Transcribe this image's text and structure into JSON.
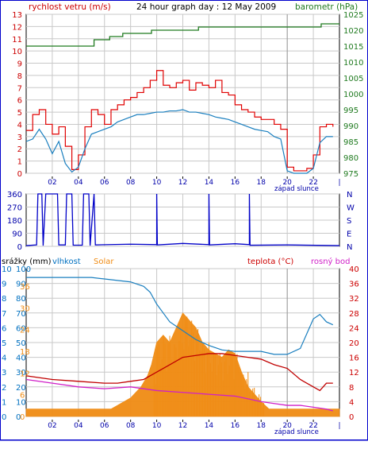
{
  "header": {
    "title": "24 hour graph day : 12 May 2009",
    "left_label": "rychlost vetru (m/s)",
    "right_label": "barometr (hPa)"
  },
  "labels": {
    "sunset_1": "západ slunce",
    "sunset_3": "západ slunce",
    "srazky": "srážky (mm)",
    "vlhkost": "vlhkost",
    "solar": "Solar",
    "teplota": "teplota (°C)",
    "rosny": "rosný bod"
  },
  "colors": {
    "frame": "#0000cc",
    "grid": "#c8c8c8",
    "wind_gust": "#e00000",
    "wind_avg": "#1a7fbf",
    "baro": "#1f7a1f",
    "dir": "#0000c8",
    "humidity": "#1a7fbf",
    "solar": "#f08c14",
    "temp": "#c00000",
    "dew": "#d020c8",
    "left_axis_1": "#cc0000",
    "right_axis_1": "#1f7a1f",
    "left_axis_3": "#0070c0",
    "right_axis_3": "#cc0000"
  },
  "chart_data": [
    {
      "type": "line",
      "title": "24 hour graph day : 12 May 2009",
      "x_ticks": [
        "02",
        "04",
        "06",
        "08",
        "10",
        "12",
        "14",
        "16",
        "18",
        "20",
        "22"
      ],
      "y_left": {
        "label": "rychlost vetru (m/s)",
        "range": [
          0,
          13
        ],
        "ticks": [
          0,
          1,
          2,
          3,
          4,
          5,
          6,
          7,
          8,
          9,
          10,
          11,
          12,
          13
        ]
      },
      "y_right": {
        "label": "barometr (hPa)",
        "range": [
          975,
          1025
        ],
        "ticks": [
          975,
          980,
          985,
          990,
          995,
          1000,
          1005,
          1010,
          1015,
          1020,
          1025
        ]
      },
      "series": [
        {
          "name": "gust",
          "x": [
            0,
            0.5,
            1,
            1.5,
            2,
            2.5,
            3,
            3.5,
            4,
            4.5,
            5,
            5.5,
            6,
            6.5,
            7,
            7.5,
            8,
            8.5,
            9,
            9.5,
            10,
            10.5,
            11,
            11.5,
            12,
            12.5,
            13,
            13.5,
            14,
            14.5,
            15,
            15.5,
            16,
            16.5,
            17,
            17.5,
            18,
            18.5,
            19,
            19.5,
            20,
            20.5,
            21,
            21.5,
            22,
            22.5,
            23,
            23.5
          ],
          "values": [
            3.5,
            4.8,
            5.2,
            4.0,
            3.2,
            3.8,
            2.2,
            0.3,
            1.5,
            3.8,
            5.2,
            4.8,
            4.0,
            5.2,
            5.6,
            6.0,
            6.2,
            6.6,
            7.0,
            7.6,
            8.4,
            7.2,
            7.0,
            7.4,
            7.6,
            6.8,
            7.4,
            7.2,
            7.0,
            7.6,
            6.6,
            6.4,
            5.6,
            5.2,
            5.0,
            4.6,
            4.4,
            4.4,
            4.0,
            3.6,
            0.5,
            0.2,
            0.2,
            0.4,
            1.5,
            3.8,
            4.0,
            3.8
          ]
        },
        {
          "name": "average",
          "x": [
            0,
            0.5,
            1,
            1.5,
            2,
            2.5,
            3,
            3.5,
            4,
            4.5,
            5,
            5.5,
            6,
            6.5,
            7,
            7.5,
            8,
            8.5,
            9,
            9.5,
            10,
            10.5,
            11,
            11.5,
            12,
            12.5,
            13,
            13.5,
            14,
            14.5,
            15,
            15.5,
            16,
            16.5,
            17,
            17.5,
            18,
            18.5,
            19,
            19.5,
            20,
            20.5,
            21,
            21.5,
            22,
            22.5,
            23,
            23.5
          ],
          "values": [
            2.6,
            2.8,
            3.6,
            2.8,
            1.6,
            2.6,
            0.8,
            0.1,
            0.5,
            2.0,
            3.2,
            3.4,
            3.6,
            3.8,
            4.2,
            4.4,
            4.6,
            4.8,
            4.8,
            4.9,
            5.0,
            5.0,
            5.1,
            5.1,
            5.2,
            5.0,
            5.0,
            4.9,
            4.8,
            4.6,
            4.5,
            4.4,
            4.2,
            4.0,
            3.8,
            3.6,
            3.5,
            3.4,
            3.0,
            2.8,
            0.2,
            0.0,
            0.0,
            0.0,
            0.4,
            2.5,
            3.0,
            3.0
          ]
        },
        {
          "name": "barometer",
          "x": [
            0,
            5.2,
            5.2,
            6.4,
            6.4,
            7.4,
            7.4,
            9.6,
            9.6,
            13.2,
            13.2,
            22.6,
            22.6,
            24
          ],
          "values": [
            1015,
            1015,
            1017,
            1017,
            1018,
            1018,
            1019,
            1019,
            1020,
            1020,
            1021,
            1021,
            1022,
            1022
          ]
        }
      ],
      "x_range": [
        0,
        24
      ],
      "annotation": "západ slunce"
    },
    {
      "type": "line",
      "y_left": {
        "range": [
          0,
          360
        ],
        "ticks": [
          0,
          90,
          180,
          270,
          360
        ]
      },
      "y_right": {
        "ticks": [
          "N",
          "W",
          "S",
          "E",
          "N"
        ]
      },
      "x_ticks": [
        "02",
        "04",
        "06",
        "08",
        "10",
        "12",
        "14",
        "16",
        "18",
        "20",
        "22"
      ],
      "series": [
        {
          "name": "wind direction",
          "x": [
            0,
            0.8,
            0.9,
            1.2,
            1.3,
            1.5,
            1.7,
            2.4,
            2.5,
            3.0,
            3.1,
            3.5,
            3.6,
            4.3,
            4.4,
            4.8,
            4.9,
            5.2,
            5.3,
            8,
            10.0,
            10.0,
            10.05,
            12,
            14.0,
            14.0,
            14.05,
            16,
            17.1,
            17.1,
            17.15,
            20,
            24
          ],
          "values": [
            5,
            10,
            360,
            360,
            5,
            360,
            360,
            360,
            10,
            10,
            360,
            360,
            8,
            8,
            360,
            360,
            5,
            360,
            10,
            15,
            12,
            360,
            10,
            20,
            12,
            360,
            10,
            18,
            12,
            360,
            8,
            10,
            5
          ]
        }
      ],
      "x_range": [
        0,
        24
      ]
    },
    {
      "type": "area",
      "x_ticks": [
        "02",
        "04",
        "06",
        "08",
        "10",
        "12",
        "14",
        "16",
        "18",
        "20",
        "22"
      ],
      "y_left_outer": {
        "label": "srážky (mm)",
        "ticks": [
          0,
          1,
          2,
          3,
          4,
          5,
          6,
          7,
          8,
          9,
          10
        ]
      },
      "y_left_inner": {
        "label": "vlhkost",
        "ticks": [
          0,
          10,
          20,
          30,
          40,
          50,
          60,
          70,
          80,
          90,
          100
        ]
      },
      "y_solar": {
        "label": "Solar",
        "ticks": [
          0,
          6,
          12,
          18,
          24,
          30,
          36
        ]
      },
      "y_right": {
        "label": "teplota (°C)",
        "ticks": [
          0,
          4,
          8,
          12,
          16,
          20,
          24,
          28,
          32,
          36,
          40
        ]
      },
      "series": [
        {
          "name": "vlhkost",
          "x": [
            0,
            2,
            4,
            5,
            6,
            7,
            8,
            9,
            9.5,
            10,
            10.5,
            11,
            12,
            13,
            14,
            15,
            16,
            17,
            18,
            19,
            20,
            21,
            21.5,
            22,
            22.5,
            23,
            23.5
          ],
          "values": [
            94,
            94,
            94,
            94,
            93,
            92,
            91,
            88,
            84,
            76,
            70,
            64,
            58,
            52,
            48,
            45,
            44,
            44,
            44,
            42,
            42,
            46,
            56,
            66,
            69,
            64,
            62
          ]
        },
        {
          "name": "Solar",
          "x": [
            0,
            6.5,
            7,
            8,
            8.8,
            9.3,
            9.6,
            10,
            10.5,
            11,
            11.5,
            12,
            12.5,
            13,
            13.5,
            14,
            14.5,
            15,
            15.5,
            16,
            16.5,
            17,
            17.5,
            18,
            18.3,
            18.6,
            24
          ],
          "values": [
            2,
            2,
            3,
            5,
            8,
            11,
            14,
            20,
            22,
            20,
            24,
            28,
            26,
            24,
            20,
            18,
            17,
            16,
            18,
            17,
            12,
            8,
            6,
            4,
            3,
            2,
            2
          ]
        },
        {
          "name": "teplota",
          "x": [
            0,
            2,
            4,
            6,
            7,
            8,
            9,
            10,
            11,
            12,
            13,
            14,
            15,
            16,
            17,
            18,
            19,
            20,
            21,
            22,
            22.5,
            23,
            23.5
          ],
          "values": [
            11,
            10,
            9.5,
            9,
            9,
            9.5,
            10,
            12,
            14,
            16,
            16.5,
            17,
            17,
            16.5,
            16,
            15.5,
            14,
            13,
            10,
            8,
            7,
            9,
            9
          ]
        },
        {
          "name": "rosný bod",
          "x": [
            0,
            2,
            4,
            6,
            8,
            10,
            12,
            14,
            16,
            18,
            19,
            20,
            21,
            22,
            23,
            23.5
          ],
          "values": [
            10,
            9,
            8,
            7.5,
            8,
            7,
            6.5,
            6,
            5.5,
            4,
            3.5,
            3,
            3,
            2.5,
            2,
            1.5
          ]
        }
      ],
      "x_range": [
        0,
        24
      ],
      "annotation": "západ slunce"
    }
  ]
}
